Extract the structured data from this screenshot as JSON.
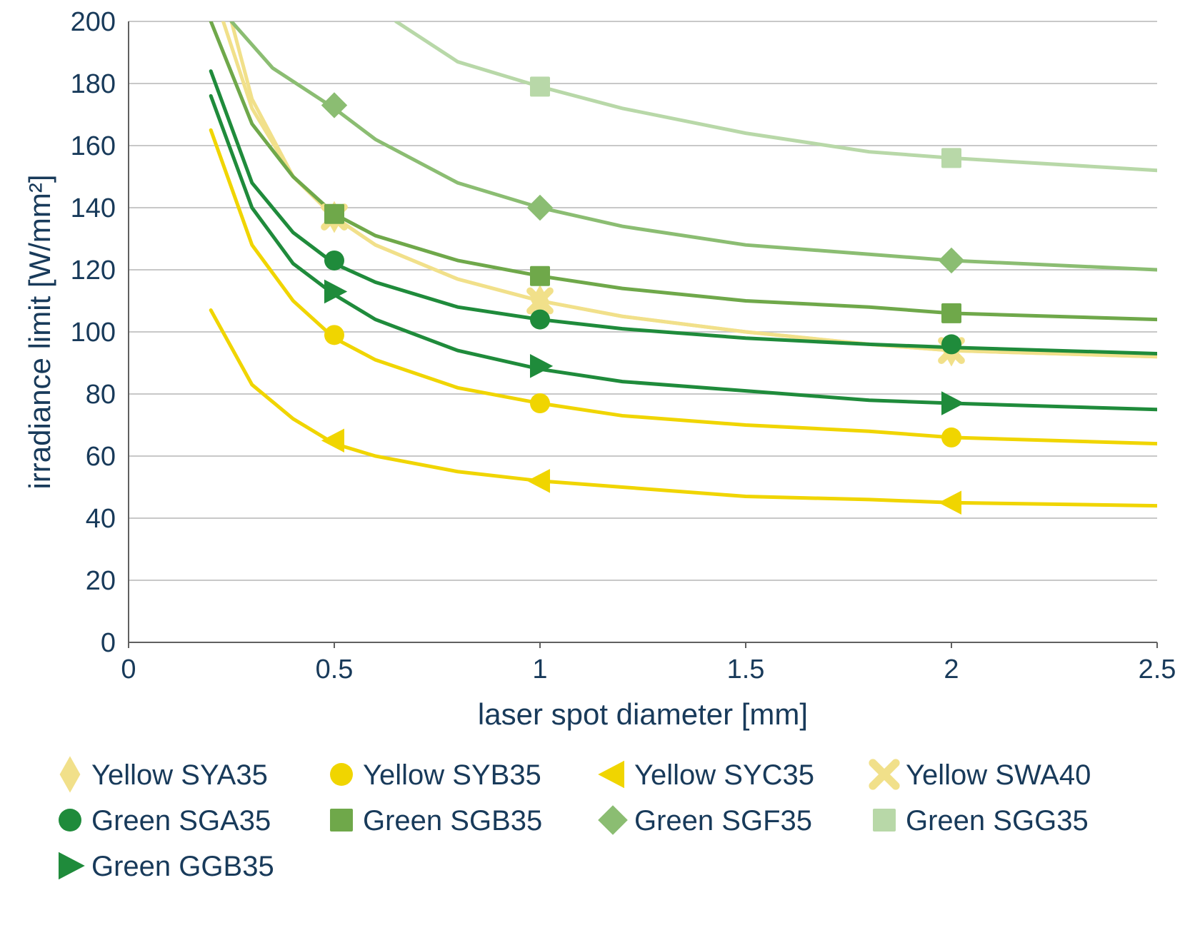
{
  "chart": {
    "type": "line",
    "background_color": "#ffffff",
    "grid_color": "#c8c8c8",
    "axis_line_color": "#606060",
    "text_color": "#183a5a",
    "tick_fontsize": 38,
    "label_fontsize": 42,
    "legend_fontsize": 40,
    "xlabel": "laser spot diameter [mm]",
    "ylabel": "irradiance limit [W/mm²]",
    "xlim": [
      0,
      2.5
    ],
    "ylim": [
      0,
      200
    ],
    "xticks": [
      0,
      0.5,
      1,
      1.5,
      2,
      2.5
    ],
    "yticks": [
      0,
      20,
      40,
      60,
      80,
      100,
      120,
      140,
      160,
      180,
      200
    ],
    "line_width": 5,
    "marker_size": 14,
    "series": [
      {
        "id": "sya35",
        "label": "Yellow SYA35",
        "color": "#f1e08a",
        "marker": "diamond-tall",
        "curve": [
          [
            0.23,
            200
          ],
          [
            0.3,
            172
          ],
          [
            0.4,
            150
          ],
          [
            0.5,
            137
          ],
          [
            0.6,
            128
          ],
          [
            0.8,
            117
          ],
          [
            1.0,
            110
          ],
          [
            1.2,
            105
          ],
          [
            1.5,
            100
          ],
          [
            1.8,
            96
          ],
          [
            2.0,
            94
          ],
          [
            2.5,
            92
          ]
        ],
        "points": [
          [
            0.5,
            137
          ],
          [
            1.0,
            110
          ],
          [
            2.0,
            94
          ]
        ]
      },
      {
        "id": "syb35",
        "label": "Yellow SYB35",
        "color": "#f0d500",
        "marker": "circle",
        "curve": [
          [
            0.2,
            165
          ],
          [
            0.3,
            128
          ],
          [
            0.4,
            110
          ],
          [
            0.5,
            98
          ],
          [
            0.6,
            91
          ],
          [
            0.8,
            82
          ],
          [
            1.0,
            77
          ],
          [
            1.2,
            73
          ],
          [
            1.5,
            70
          ],
          [
            1.8,
            68
          ],
          [
            2.0,
            66
          ],
          [
            2.5,
            64
          ]
        ],
        "points": [
          [
            0.5,
            99
          ],
          [
            1.0,
            77
          ],
          [
            2.0,
            66
          ]
        ]
      },
      {
        "id": "syc35",
        "label": "Yellow SYC35",
        "color": "#f0d500",
        "marker": "triangle-left",
        "curve": [
          [
            0.2,
            107
          ],
          [
            0.3,
            83
          ],
          [
            0.4,
            72
          ],
          [
            0.5,
            64
          ],
          [
            0.6,
            60
          ],
          [
            0.8,
            55
          ],
          [
            1.0,
            52
          ],
          [
            1.2,
            50
          ],
          [
            1.5,
            47
          ],
          [
            1.8,
            46
          ],
          [
            2.0,
            45
          ],
          [
            2.5,
            44
          ]
        ],
        "points": [
          [
            0.5,
            65
          ],
          [
            1.0,
            52
          ],
          [
            2.0,
            45
          ]
        ]
      },
      {
        "id": "swa40",
        "label": "Yellow SWA40",
        "color": "#f1e08a",
        "marker": "x",
        "curve": [
          [
            0.25,
            200
          ],
          [
            0.3,
            175
          ],
          [
            0.4,
            150
          ],
          [
            0.5,
            137
          ],
          [
            0.6,
            128
          ],
          [
            0.8,
            117
          ],
          [
            1.0,
            110
          ],
          [
            1.2,
            105
          ],
          [
            1.5,
            100
          ],
          [
            1.8,
            96
          ],
          [
            2.0,
            94
          ],
          [
            2.5,
            92
          ]
        ],
        "points": [
          [
            0.5,
            137
          ],
          [
            1.0,
            110
          ],
          [
            2.0,
            94
          ]
        ]
      },
      {
        "id": "sga35",
        "label": "Green SGA35",
        "color": "#1f8b3b",
        "marker": "circle",
        "curve": [
          [
            0.2,
            184
          ],
          [
            0.3,
            148
          ],
          [
            0.4,
            132
          ],
          [
            0.5,
            122
          ],
          [
            0.6,
            116
          ],
          [
            0.8,
            108
          ],
          [
            1.0,
            104
          ],
          [
            1.2,
            101
          ],
          [
            1.5,
            98
          ],
          [
            1.8,
            96
          ],
          [
            2.0,
            95
          ],
          [
            2.5,
            93
          ]
        ],
        "points": [
          [
            0.5,
            123
          ],
          [
            1.0,
            104
          ],
          [
            2.0,
            96
          ]
        ]
      },
      {
        "id": "sgb35",
        "label": "Green SGB35",
        "color": "#6fa84a",
        "marker": "square",
        "curve": [
          [
            0.2,
            200
          ],
          [
            0.3,
            167
          ],
          [
            0.4,
            150
          ],
          [
            0.5,
            138
          ],
          [
            0.6,
            131
          ],
          [
            0.8,
            123
          ],
          [
            1.0,
            118
          ],
          [
            1.2,
            114
          ],
          [
            1.5,
            110
          ],
          [
            1.8,
            108
          ],
          [
            2.0,
            106
          ],
          [
            2.5,
            104
          ]
        ],
        "points": [
          [
            0.5,
            138
          ],
          [
            1.0,
            118
          ],
          [
            2.0,
            106
          ]
        ]
      },
      {
        "id": "sgf35",
        "label": "Green SGF35",
        "color": "#8bbd72",
        "marker": "diamond",
        "curve": [
          [
            0.25,
            200
          ],
          [
            0.35,
            185
          ],
          [
            0.5,
            172
          ],
          [
            0.6,
            162
          ],
          [
            0.8,
            148
          ],
          [
            1.0,
            140
          ],
          [
            1.2,
            134
          ],
          [
            1.5,
            128
          ],
          [
            1.8,
            125
          ],
          [
            2.0,
            123
          ],
          [
            2.5,
            120
          ]
        ],
        "points": [
          [
            0.5,
            173
          ],
          [
            1.0,
            140
          ],
          [
            2.0,
            123
          ]
        ]
      },
      {
        "id": "sgg35",
        "label": "Green SGG35",
        "color": "#b8d8a8",
        "marker": "square",
        "curve": [
          [
            0.65,
            200
          ],
          [
            0.8,
            187
          ],
          [
            1.0,
            179
          ],
          [
            1.2,
            172
          ],
          [
            1.5,
            164
          ],
          [
            1.8,
            158
          ],
          [
            2.0,
            156
          ],
          [
            2.5,
            152
          ]
        ],
        "points": [
          [
            1.0,
            179
          ],
          [
            2.0,
            156
          ]
        ]
      },
      {
        "id": "ggb35",
        "label": "Green GGB35",
        "color": "#1f8b3b",
        "marker": "triangle-right",
        "curve": [
          [
            0.2,
            176
          ],
          [
            0.3,
            140
          ],
          [
            0.4,
            122
          ],
          [
            0.5,
            112
          ],
          [
            0.6,
            104
          ],
          [
            0.8,
            94
          ],
          [
            1.0,
            88
          ],
          [
            1.2,
            84
          ],
          [
            1.5,
            81
          ],
          [
            1.8,
            78
          ],
          [
            2.0,
            77
          ],
          [
            2.5,
            75
          ]
        ],
        "points": [
          [
            0.5,
            113
          ],
          [
            1.0,
            89
          ],
          [
            2.0,
            77
          ]
        ]
      }
    ],
    "legend": {
      "columns": 4,
      "items": [
        "sya35",
        "syb35",
        "syc35",
        "swa40",
        "sga35",
        "sgb35",
        "sgf35",
        "sgg35",
        "ggb35"
      ]
    }
  }
}
